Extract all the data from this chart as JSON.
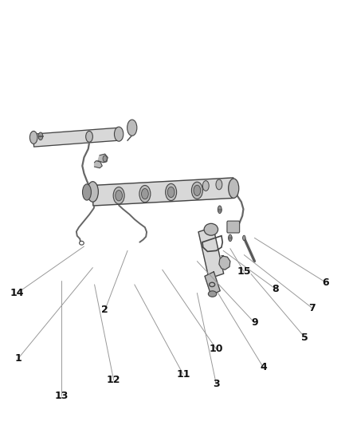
{
  "background_color": "#ffffff",
  "figure_width": 4.38,
  "figure_height": 5.33,
  "dpi": 100,
  "labels": [
    {
      "num": "1",
      "lbx": 0.05,
      "lby": 0.155,
      "ptx": 0.265,
      "pty": 0.37
    },
    {
      "num": "2",
      "lbx": 0.3,
      "lby": 0.27,
      "ptx": 0.365,
      "pty": 0.41
    },
    {
      "num": "3",
      "lbx": 0.62,
      "lby": 0.095,
      "ptx": 0.565,
      "pty": 0.31
    },
    {
      "num": "4",
      "lbx": 0.755,
      "lby": 0.135,
      "ptx": 0.625,
      "pty": 0.31
    },
    {
      "num": "5",
      "lbx": 0.875,
      "lby": 0.205,
      "ptx": 0.72,
      "pty": 0.355
    },
    {
      "num": "6",
      "lbx": 0.935,
      "lby": 0.335,
      "ptx": 0.73,
      "pty": 0.44
    },
    {
      "num": "7",
      "lbx": 0.895,
      "lby": 0.275,
      "ptx": 0.7,
      "pty": 0.4
    },
    {
      "num": "8",
      "lbx": 0.79,
      "lby": 0.32,
      "ptx": 0.64,
      "pty": 0.41
    },
    {
      "num": "9",
      "lbx": 0.73,
      "lby": 0.24,
      "ptx": 0.565,
      "pty": 0.385
    },
    {
      "num": "10",
      "lbx": 0.62,
      "lby": 0.178,
      "ptx": 0.465,
      "pty": 0.365
    },
    {
      "num": "11",
      "lbx": 0.525,
      "lby": 0.118,
      "ptx": 0.385,
      "pty": 0.33
    },
    {
      "num": "12",
      "lbx": 0.325,
      "lby": 0.105,
      "ptx": 0.27,
      "pty": 0.33
    },
    {
      "num": "13",
      "lbx": 0.175,
      "lby": 0.068,
      "ptx": 0.175,
      "pty": 0.34
    },
    {
      "num": "14",
      "lbx": 0.048,
      "lby": 0.31,
      "ptx": 0.24,
      "pty": 0.42
    },
    {
      "num": "15",
      "lbx": 0.7,
      "lby": 0.36,
      "ptx": 0.66,
      "pty": 0.415
    }
  ],
  "line_color": "#999999",
  "label_fontsize": 9
}
